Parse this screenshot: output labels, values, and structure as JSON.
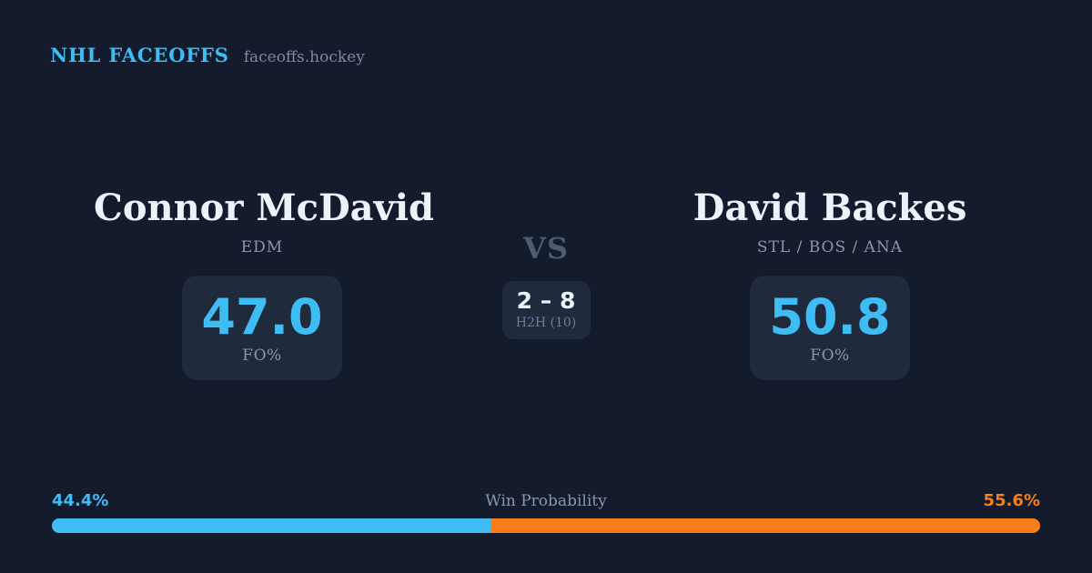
{
  "header": {
    "brand": "NHL FACEOFFS",
    "site": "faceoffs.hockey"
  },
  "matchup": {
    "player_left": {
      "name": "Connor McDavid",
      "teams": "EDM",
      "stat_value": "47.0",
      "stat_label": "FO%"
    },
    "versus": {
      "label": "VS",
      "h2h_score": "2 – 8",
      "h2h_label": "H2H (10)"
    },
    "player_right": {
      "name": "David Backes",
      "teams": "STL / BOS / ANA",
      "stat_value": "50.8",
      "stat_label": "FO%"
    }
  },
  "win_probability": {
    "label": "Win Probability",
    "left_pct_label": "44.4%",
    "right_pct_label": "55.6%",
    "left_value": 44.4,
    "right_value": 55.6
  },
  "colors": {
    "background": "#131b2d",
    "card": "#1f2a3c",
    "accent_blue": "#3ebcf4",
    "accent_orange": "#f97e17",
    "text_primary": "#edf1f8",
    "text_muted": "#8a97ab",
    "versus": "#4d5c75"
  }
}
